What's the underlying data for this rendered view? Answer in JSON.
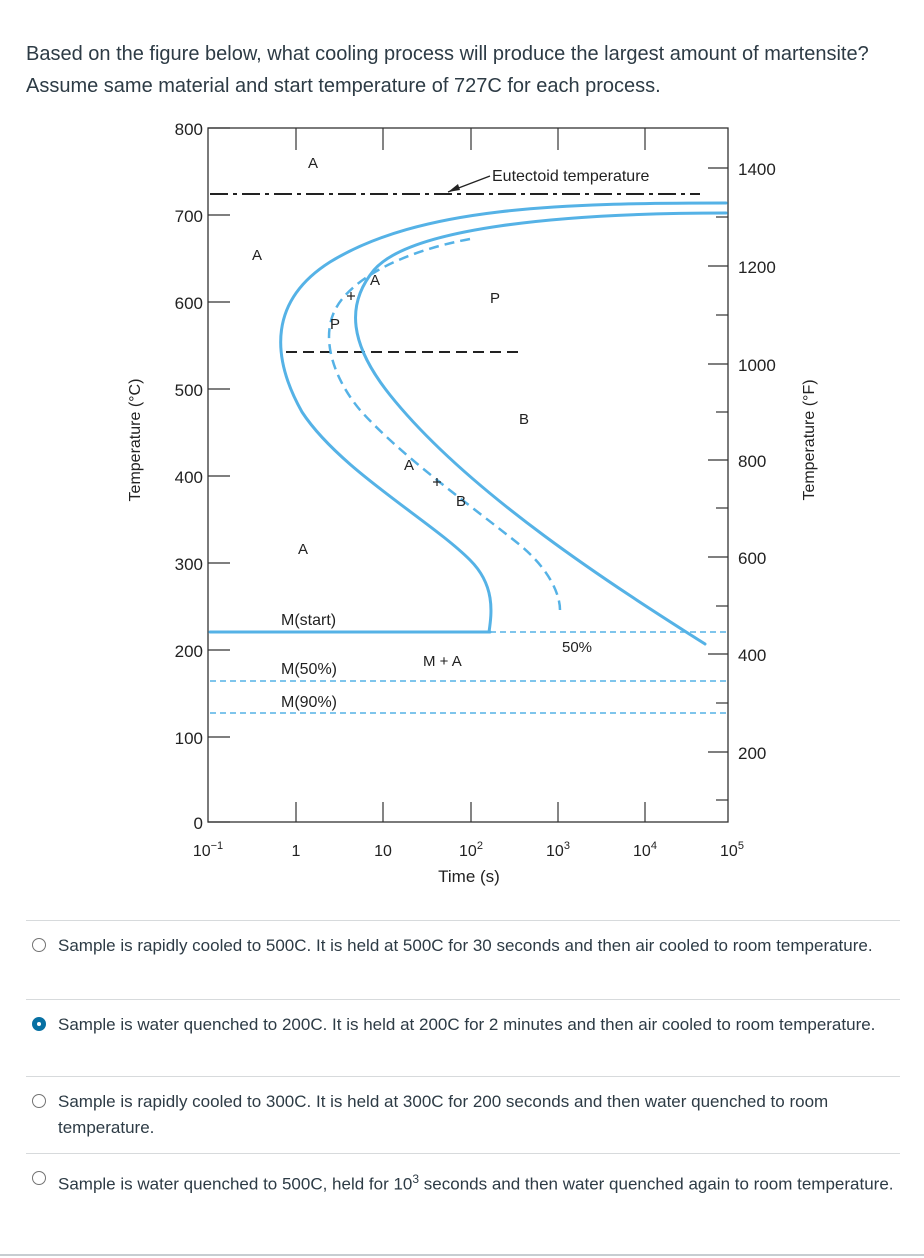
{
  "question": {
    "text": "Based on the figure below, what cooling process will produce the largest amount of martensite? Assume same material and start temperature of 727C for each process."
  },
  "figure": {
    "y_left_label": "Temperature (°C)",
    "y_right_label": "Temperature (°F)",
    "x_label": "Time (s)",
    "y_left_ticks": [
      "800",
      "700",
      "600",
      "500",
      "400",
      "300",
      "200",
      "100",
      "0"
    ],
    "y_right_ticks": [
      "1400",
      "1200",
      "1000",
      "800",
      "600",
      "400",
      "200"
    ],
    "x_ticks": [
      {
        "base": "10",
        "exp": "−1"
      },
      {
        "base": "1",
        "exp": ""
      },
      {
        "base": "10",
        "exp": ""
      },
      {
        "base": "10",
        "exp": "2"
      },
      {
        "base": "10",
        "exp": "3"
      },
      {
        "base": "10",
        "exp": "4"
      },
      {
        "base": "10",
        "exp": "5"
      }
    ],
    "labels": {
      "eutectoid": "Eutectoid temperature",
      "a_top": "A",
      "a_left": "A",
      "a_low": "A",
      "a_dash_upper": "A",
      "a_dash_lower": "A",
      "p_dash": "P",
      "p_region": "P",
      "b_dash": "B",
      "b_region": "B",
      "m_start": "M(start)",
      "m50": "M(50%)",
      "m90": "M(90%)",
      "m_plus_a": "M + A",
      "pct50": "50%"
    },
    "colors": {
      "curve": "#55b2e6",
      "dashed_curve": "#55b2e6",
      "axis": "#333333"
    }
  },
  "answers": [
    {
      "text": "Sample is rapidly cooled to 500C. It is held at 500C for 30 seconds and then air cooled to room temperature.",
      "selected": false
    },
    {
      "text": "Sample is water quenched to 200C. It is held at 200C for 2 minutes and then air cooled to room temperature.",
      "selected": true
    },
    {
      "text": "Sample is rapidly cooled to 300C. It is held at 300C for 200 seconds and then water quenched to room temperature.",
      "selected": false
    },
    {
      "text_pre": "Sample is water quenched to 500C, held for 10",
      "text_sup": "3",
      "text_post": " seconds and then water quenched again to room temperature.",
      "selected": false
    }
  ]
}
